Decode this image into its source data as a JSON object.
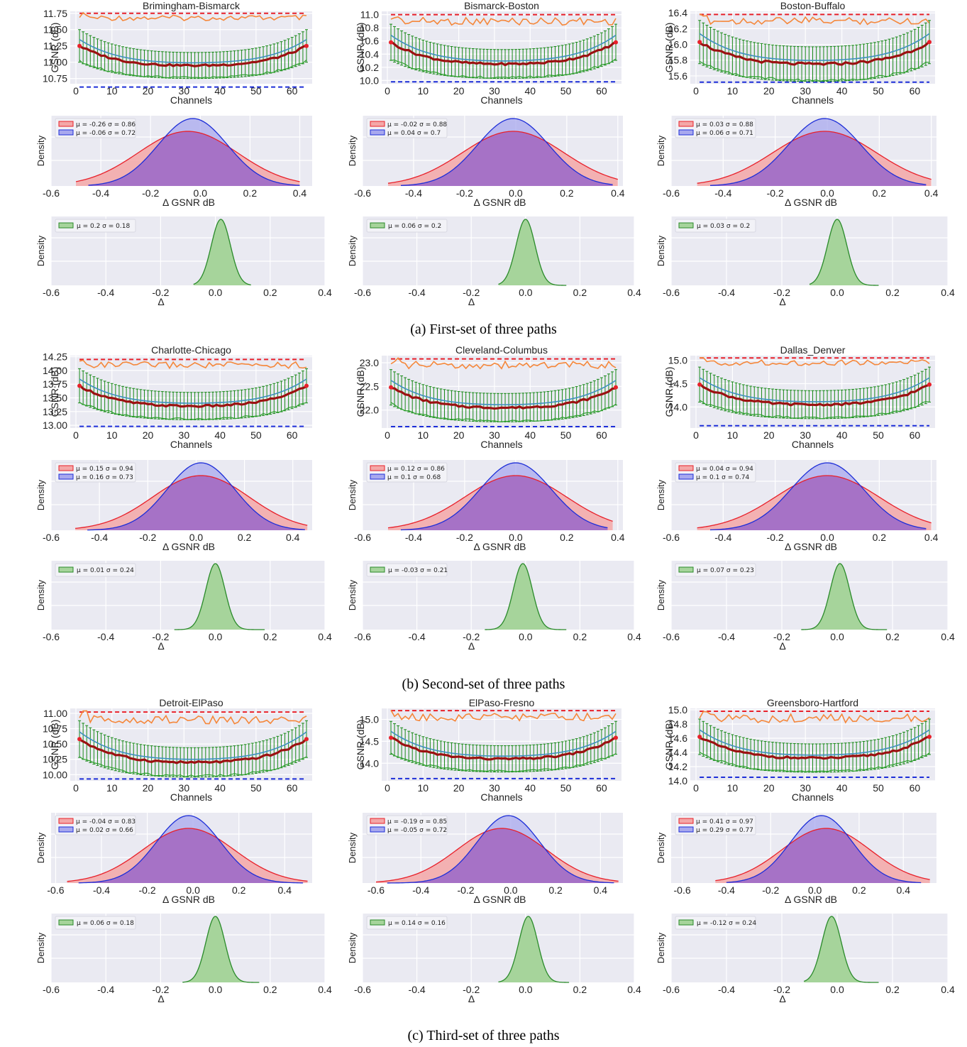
{
  "captions": [
    "(a) First-set of three paths",
    "(b) Second-set of three paths",
    "(c) Third-set of three paths"
  ],
  "colors": {
    "panel_bg": "#eaeaf2",
    "grid": "#ffffff",
    "ref_upper": "#e8202a",
    "ref_lower": "#1d2ed8",
    "optimistic": "#f5873a",
    "mean": "#9b1111",
    "errorbar": "#1a8a1a",
    "measured": "#3e8fc0",
    "pess": "#2ca02c",
    "red_fill": "#f4a7a7",
    "blue_fill": "#a8a8ee",
    "overlap_fill": "#a672c6",
    "green_fill": "#a6d49b",
    "green_line": "#2a8a2a"
  },
  "common": {
    "gsnr_ylabel": "GSNR (dB)",
    "channels_xlabel": "Channels",
    "channels_ticks": [
      "0",
      "10",
      "20",
      "30",
      "40",
      "50",
      "60"
    ],
    "density_ylabel": "Density",
    "dgsnr_xlabel": "Δ GSNR dB",
    "delta_xlabel": "Δ",
    "delta_xticks": [
      "-0.6",
      "-0.4",
      "-0.2",
      "0.0",
      "0.2",
      "0.4"
    ]
  },
  "chart_data": [
    {
      "type": "line",
      "title": "Brimingham-Bismarck",
      "xlabel": "Channels",
      "ylabel": "GSNR (dB)",
      "xlim": [
        0,
        64
      ],
      "ylim": [
        10.67,
        11.78
      ],
      "yticks": [
        "10.75",
        "11.00",
        "11.25",
        "11.50",
        "11.75"
      ],
      "ytick_values": [
        10.75,
        11.0,
        11.25,
        11.5,
        11.75
      ],
      "upper_ref": 11.75,
      "lower_ref": 10.62,
      "optimistic": 11.68,
      "mean_mid": 10.95,
      "mean_edge": 11.25,
      "err_half": 0.2,
      "density": {
        "type": "area",
        "xlabel": "Δ GSNR dB",
        "ylabel": "Density",
        "xlim": [
          -0.6,
          0.45
        ],
        "xticks": [
          "-0.6",
          "-0.4",
          "-0.2",
          "0.0",
          "0.2",
          "0.4"
        ],
        "xtick_values": [
          -0.6,
          -0.4,
          -0.2,
          0.0,
          0.2,
          0.4
        ],
        "red_range": [
          -0.5,
          0.4
        ],
        "blue_range": [
          -0.45,
          0.4
        ],
        "legend": [
          {
            "color": "red",
            "label": "μ = -0.26 σ = 0.86",
            "mu": -0.26,
            "sigma": 0.86,
            "peak_x": -0.05
          },
          {
            "color": "blue",
            "label": "μ = -0.06 σ = 0.72",
            "mu": -0.06,
            "sigma": 0.72,
            "peak_x": -0.03
          }
        ]
      },
      "delta": {
        "type": "area",
        "xlabel": "Δ",
        "ylabel": "Density",
        "xlim": [
          -0.6,
          0.4
        ],
        "legend": {
          "label": "μ = 0.2 σ = 0.18",
          "mu": 0.2,
          "sigma": 0.18
        },
        "peak_x": 0.02,
        "range": [
          -0.08,
          0.13
        ]
      }
    },
    {
      "type": "line",
      "title": "Bismarck-Boston",
      "xlabel": "Channels",
      "ylabel": "GSNR (dB)",
      "xlim": [
        0,
        64
      ],
      "ylim": [
        9.95,
        11.05
      ],
      "yticks": [
        "10.0",
        "10.2",
        "10.4",
        "10.6",
        "10.8",
        "11.0"
      ],
      "ytick_values": [
        10.0,
        10.2,
        10.4,
        10.6,
        10.8,
        11.0
      ],
      "upper_ref": 11.0,
      "lower_ref": 9.98,
      "optimistic": 10.9,
      "mean_mid": 10.25,
      "mean_edge": 10.58,
      "err_half": 0.22,
      "density": {
        "type": "area",
        "xlabel": "Δ GSNR dB",
        "ylabel": "Density",
        "xlim": [
          -0.6,
          0.42
        ],
        "xticks": [
          "-0.6",
          "-0.4",
          "-0.2",
          "0.0",
          "0.2",
          "0.4"
        ],
        "xtick_values": [
          -0.6,
          -0.4,
          -0.2,
          0.0,
          0.2,
          0.4
        ],
        "red_range": [
          -0.5,
          0.4
        ],
        "blue_range": [
          -0.45,
          0.38
        ],
        "legend": [
          {
            "color": "red",
            "label": "μ = -0.02 σ = 0.88",
            "mu": -0.02,
            "sigma": 0.88,
            "peak_x": -0.01
          },
          {
            "color": "blue",
            "label": "μ = 0.04 σ = 0.7",
            "mu": 0.04,
            "sigma": 0.7,
            "peak_x": -0.01
          }
        ]
      },
      "delta": {
        "type": "area",
        "xlabel": "Δ",
        "ylabel": "Density",
        "xlim": [
          -0.6,
          0.4
        ],
        "legend": {
          "label": "μ = 0.06 σ = 0.2",
          "mu": 0.06,
          "sigma": 0.2
        },
        "peak_x": 0.0,
        "range": [
          -0.1,
          0.15
        ]
      }
    },
    {
      "type": "line",
      "title": "Boston-Buffalo",
      "xlabel": "Channels",
      "ylabel": "GSNR (dB)",
      "xlim": [
        0,
        64
      ],
      "ylim": [
        15.5,
        16.42
      ],
      "yticks": [
        "15.6",
        "15.8",
        "16.0",
        "16.2",
        "16.4"
      ],
      "ytick_values": [
        15.6,
        15.8,
        16.0,
        16.2,
        16.4
      ],
      "upper_ref": 16.38,
      "lower_ref": 15.52,
      "optimistic": 16.3,
      "mean_mid": 15.75,
      "mean_edge": 16.03,
      "err_half": 0.22,
      "density": {
        "type": "area",
        "xlabel": "Δ GSNR dB",
        "ylabel": "Density",
        "xlim": [
          -0.6,
          0.42
        ],
        "xticks": [
          "-0.6",
          "-0.4",
          "-0.2",
          "0.0",
          "0.2",
          "0.4"
        ],
        "xtick_values": [
          -0.6,
          -0.4,
          -0.2,
          0.0,
          0.2,
          0.4
        ],
        "red_range": [
          -0.5,
          0.4
        ],
        "blue_range": [
          -0.45,
          0.38
        ],
        "legend": [
          {
            "color": "red",
            "label": "μ = 0.03 σ = 0.88",
            "mu": 0.03,
            "sigma": 0.88,
            "peak_x": -0.01
          },
          {
            "color": "blue",
            "label": "μ = 0.06 σ = 0.71",
            "mu": 0.06,
            "sigma": 0.71,
            "peak_x": -0.01
          }
        ]
      },
      "delta": {
        "type": "area",
        "xlabel": "Δ",
        "ylabel": "Density",
        "xlim": [
          -0.6,
          0.4
        ],
        "legend": {
          "label": "μ = 0.03 σ = 0.2",
          "mu": 0.03,
          "sigma": 0.2
        },
        "peak_x": 0.0,
        "range": [
          -0.1,
          0.15
        ]
      }
    },
    {
      "type": "line",
      "title": "Charlotte-Chicago",
      "xlabel": "Channels",
      "ylabel": "GSNR (dB)",
      "xlim": [
        0,
        64
      ],
      "ylim": [
        12.95,
        14.27
      ],
      "yticks": [
        "13.00",
        "13.25",
        "13.50",
        "13.75",
        "14.00",
        "14.25"
      ],
      "ytick_values": [
        13.0,
        13.25,
        13.5,
        13.75,
        14.0,
        14.25
      ],
      "upper_ref": 14.2,
      "lower_ref": 12.98,
      "optimistic": 14.1,
      "mean_mid": 13.35,
      "mean_edge": 13.72,
      "err_half": 0.25,
      "density": {
        "type": "area",
        "xlabel": "Δ GSNR dB",
        "ylabel": "Density",
        "xlim": [
          -0.6,
          0.48
        ],
        "xticks": [
          "-0.6",
          "-0.4",
          "-0.2",
          "0.0",
          "0.2",
          "0.4"
        ],
        "xtick_values": [
          -0.6,
          -0.4,
          -0.2,
          0.0,
          0.2,
          0.4
        ],
        "red_range": [
          -0.5,
          0.46
        ],
        "blue_range": [
          -0.45,
          0.45
        ],
        "legend": [
          {
            "color": "red",
            "label": "μ = 0.15 σ = 0.94",
            "mu": 0.15,
            "sigma": 0.94,
            "peak_x": 0.02
          },
          {
            "color": "blue",
            "label": "μ = 0.16 σ = 0.73",
            "mu": 0.16,
            "sigma": 0.73,
            "peak_x": 0.02
          }
        ]
      },
      "delta": {
        "type": "area",
        "xlabel": "Δ",
        "ylabel": "Density",
        "xlim": [
          -0.6,
          0.4
        ],
        "legend": {
          "label": "μ = 0.01 σ = 0.24",
          "mu": 0.01,
          "sigma": 0.24
        },
        "peak_x": 0.0,
        "range": [
          -0.15,
          0.18
        ]
      }
    },
    {
      "type": "line",
      "title": "Cleveland-Columbus",
      "xlabel": "Channels",
      "ylabel": "GSNR (dB)",
      "xlim": [
        0,
        64
      ],
      "ylim": [
        21.62,
        23.15
      ],
      "yticks": [
        "22.0",
        "22.5",
        "23.0"
      ],
      "ytick_values": [
        22.0,
        22.5,
        23.0
      ],
      "upper_ref": 23.08,
      "lower_ref": 21.65,
      "optimistic": 22.95,
      "mean_mid": 22.05,
      "mean_edge": 22.48,
      "err_half": 0.3,
      "density": {
        "type": "area",
        "xlabel": "Δ GSNR dB",
        "ylabel": "Density",
        "xlim": [
          -0.6,
          0.42
        ],
        "xticks": [
          "-0.6",
          "-0.4",
          "-0.2",
          "0.0",
          "0.2",
          "0.4"
        ],
        "xtick_values": [
          -0.6,
          -0.4,
          -0.2,
          0.0,
          0.2,
          0.4
        ],
        "red_range": [
          -0.5,
          0.38
        ],
        "blue_range": [
          -0.45,
          0.36
        ],
        "legend": [
          {
            "color": "red",
            "label": "μ = 0.12 σ = 0.86",
            "mu": 0.12,
            "sigma": 0.86,
            "peak_x": 0.0
          },
          {
            "color": "blue",
            "label": "μ = 0.1 σ = 0.68",
            "mu": 0.1,
            "sigma": 0.68,
            "peak_x": 0.0
          }
        ]
      },
      "delta": {
        "type": "area",
        "xlabel": "Δ",
        "ylabel": "Density",
        "xlim": [
          -0.6,
          0.4
        ],
        "legend": {
          "label": "μ = -0.03 σ = 0.21",
          "mu": -0.03,
          "sigma": 0.21,
          "peak_x": -0.01
        },
        "peak_x": -0.01,
        "range": [
          -0.15,
          0.15
        ]
      }
    },
    {
      "type": "line",
      "title": "Dallas_Denver",
      "xlabel": "Channels",
      "ylabel": "GSNR (dB)",
      "xlim": [
        0,
        64
      ],
      "ylim": [
        13.55,
        15.1
      ],
      "yticks": [
        "14.0",
        "14.5",
        "15.0"
      ],
      "ytick_values": [
        14.0,
        14.5,
        15.0
      ],
      "upper_ref": 15.05,
      "lower_ref": 13.6,
      "optimistic": 14.95,
      "mean_mid": 14.05,
      "mean_edge": 14.48,
      "err_half": 0.3,
      "density": {
        "type": "area",
        "xlabel": "Δ GSNR dB",
        "ylabel": "Density",
        "xlim": [
          -0.6,
          0.42
        ],
        "xticks": [
          "-0.6",
          "-0.4",
          "-0.2",
          "0.0",
          "0.2",
          "0.4"
        ],
        "xtick_values": [
          -0.6,
          -0.4,
          -0.2,
          0.0,
          0.2,
          0.4
        ],
        "red_range": [
          -0.5,
          0.4
        ],
        "blue_range": [
          -0.45,
          0.38
        ],
        "legend": [
          {
            "color": "red",
            "label": "μ = 0.04 σ = 0.94",
            "mu": 0.04,
            "sigma": 0.94,
            "peak_x": 0.0
          },
          {
            "color": "blue",
            "label": "μ = 0.1 σ = 0.74",
            "mu": 0.1,
            "sigma": 0.74,
            "peak_x": 0.0
          }
        ]
      },
      "delta": {
        "type": "area",
        "xlabel": "Δ",
        "ylabel": "Density",
        "xlim": [
          -0.6,
          0.4
        ],
        "legend": {
          "label": "μ = 0.07 σ = 0.23",
          "mu": 0.07,
          "sigma": 0.23
        },
        "peak_x": 0.01,
        "range": [
          -0.13,
          0.18
        ]
      }
    },
    {
      "type": "line",
      "title": "Detroit-ElPaso",
      "xlabel": "Channels",
      "ylabel": "GSNR (dB)",
      "xlim": [
        0,
        64
      ],
      "ylim": [
        9.9,
        11.08
      ],
      "yticks": [
        "10.00",
        "10.25",
        "10.50",
        "10.75",
        "11.00"
      ],
      "ytick_values": [
        10.0,
        10.25,
        10.5,
        10.75,
        11.0
      ],
      "upper_ref": 11.02,
      "lower_ref": 9.93,
      "optimistic": 10.9,
      "mean_mid": 10.2,
      "mean_edge": 10.58,
      "err_half": 0.24,
      "density": {
        "type": "area",
        "xlabel": "Δ GSNR dB",
        "ylabel": "Density",
        "xlim": [
          -0.62,
          0.52
        ],
        "xticks": [
          "-0.6",
          "-0.4",
          "-0.2",
          "0.0",
          "0.2",
          "0.4"
        ],
        "xtick_values": [
          -0.6,
          -0.4,
          -0.2,
          0.0,
          0.2,
          0.4
        ],
        "red_range": [
          -0.55,
          0.5
        ],
        "blue_range": [
          -0.5,
          0.48
        ],
        "legend": [
          {
            "color": "red",
            "label": "μ = -0.04 σ = 0.83",
            "mu": -0.04,
            "sigma": 0.83,
            "peak_x": -0.02
          },
          {
            "color": "blue",
            "label": "μ = 0.02 σ = 0.66",
            "mu": 0.02,
            "sigma": 0.66,
            "peak_x": -0.02
          }
        ]
      },
      "delta": {
        "type": "area",
        "xlabel": "Δ",
        "ylabel": "Density",
        "xlim": [
          -0.6,
          0.4
        ],
        "legend": {
          "label": "μ = 0.06 σ = 0.18",
          "mu": 0.06,
          "sigma": 0.18
        },
        "peak_x": 0.0,
        "range": [
          -0.12,
          0.16
        ]
      }
    },
    {
      "type": "line",
      "title": "ElPaso-Fresno",
      "xlabel": "Channels",
      "ylabel": "GSNR (dB)",
      "xlim": [
        0,
        64
      ],
      "ylim": [
        13.6,
        15.25
      ],
      "yticks": [
        "14.0",
        "14.5",
        "15.0"
      ],
      "ytick_values": [
        14.0,
        14.5,
        15.0
      ],
      "upper_ref": 15.2,
      "lower_ref": 13.65,
      "optimistic": 15.05,
      "mean_mid": 14.1,
      "mean_edge": 14.58,
      "err_half": 0.3,
      "density": {
        "type": "area",
        "xlabel": "Δ GSNR dB",
        "ylabel": "Density",
        "xlim": [
          -0.66,
          0.5
        ],
        "xticks": [
          "-0.6",
          "-0.4",
          "-0.2",
          "0.0",
          "0.2",
          "0.4"
        ],
        "xtick_values": [
          -0.6,
          -0.4,
          -0.2,
          0.0,
          0.2,
          0.4
        ],
        "red_range": [
          -0.6,
          0.48
        ],
        "blue_range": [
          -0.55,
          0.46
        ],
        "legend": [
          {
            "color": "red",
            "label": "μ = -0.19 σ = 0.85",
            "mu": -0.19,
            "sigma": 0.85,
            "peak_x": -0.04
          },
          {
            "color": "blue",
            "label": "μ = -0.05 σ = 0.72",
            "mu": -0.05,
            "sigma": 0.72,
            "peak_x": -0.01
          }
        ]
      },
      "delta": {
        "type": "area",
        "xlabel": "Δ",
        "ylabel": "Density",
        "xlim": [
          -0.6,
          0.4
        ],
        "legend": {
          "label": "μ = 0.14 σ = 0.16",
          "mu": 0.14,
          "sigma": 0.16
        },
        "peak_x": 0.01,
        "range": [
          -0.1,
          0.16
        ]
      }
    },
    {
      "type": "line",
      "title": "Greensboro-Hartford",
      "xlabel": "Channels",
      "ylabel": "GSNR (dB)",
      "xlim": [
        0,
        64
      ],
      "ylim": [
        14.0,
        15.02
      ],
      "yticks": [
        "14.0",
        "14.2",
        "14.4",
        "14.6",
        "14.8",
        "15.0"
      ],
      "ytick_values": [
        14.0,
        14.2,
        14.4,
        14.6,
        14.8,
        15.0
      ],
      "upper_ref": 14.98,
      "lower_ref": 14.05,
      "optimistic": 14.88,
      "mean_mid": 14.32,
      "mean_edge": 14.62,
      "err_half": 0.2,
      "density": {
        "type": "area",
        "xlabel": "Δ GSNR dB",
        "ylabel": "Density",
        "xlim": [
          -0.65,
          0.55
        ],
        "xticks": [
          "-0.6",
          "-0.4",
          "-0.2",
          "0.0",
          "0.2",
          "0.4"
        ],
        "xtick_values": [
          -0.6,
          -0.4,
          -0.2,
          0.0,
          0.2,
          0.4
        ],
        "red_range": [
          -0.45,
          0.52
        ],
        "blue_range": [
          -0.4,
          0.48
        ],
        "legend": [
          {
            "color": "red",
            "label": "μ = 0.41 σ = 0.97",
            "mu": 0.41,
            "sigma": 0.97,
            "peak_x": 0.05
          },
          {
            "color": "blue",
            "label": "μ = 0.29 σ = 0.77",
            "mu": 0.29,
            "sigma": 0.77,
            "peak_x": 0.03
          }
        ]
      },
      "delta": {
        "type": "area",
        "xlabel": "Δ",
        "ylabel": "Density",
        "xlim": [
          -0.6,
          0.4
        ],
        "legend": {
          "label": "μ = -0.12 σ = 0.24",
          "mu": -0.12,
          "sigma": 0.24
        },
        "peak_x": -0.02,
        "range": [
          -0.12,
          0.15
        ]
      }
    }
  ]
}
